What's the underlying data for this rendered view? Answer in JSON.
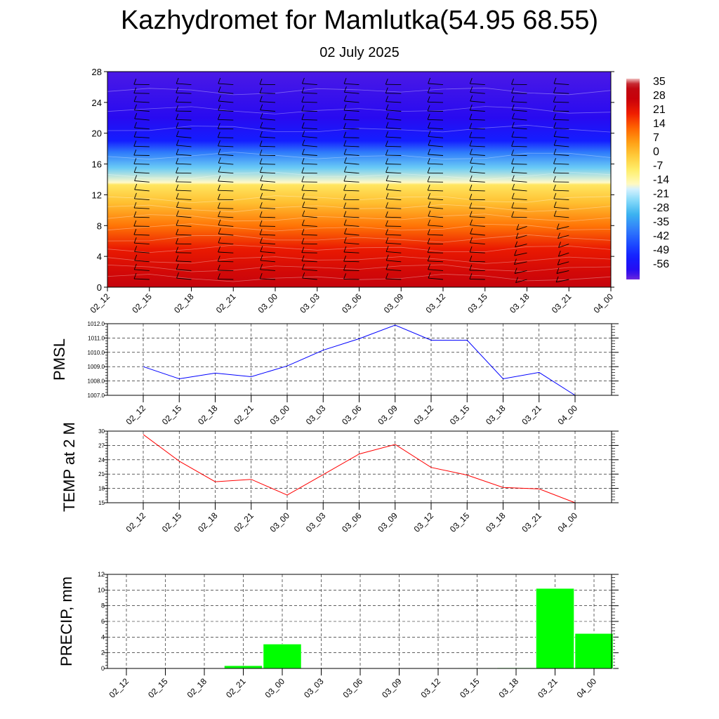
{
  "header": {
    "title": "Kazhydromet for Mamlutka(54.95 68.55)",
    "date": "02 July 2025"
  },
  "colors": {
    "pmsl_line": "#0000ff",
    "temp_line": "#ff0000",
    "precip_bar": "#00ff00",
    "grid": "#000000"
  },
  "chart_data": [
    {
      "type": "heatmap",
      "x_tick_labels": [
        "02_12",
        "02_15",
        "02_18",
        "02_21",
        "03_00",
        "03_03",
        "03_06",
        "03_09",
        "03_12",
        "03_15",
        "03_18",
        "03_21",
        "04_00"
      ],
      "y_ticks": [
        0,
        4,
        8,
        12,
        16,
        20,
        24,
        28
      ],
      "ylim": [
        0,
        28
      ],
      "colorbar_labels": [
        "35",
        "28",
        "21",
        "14",
        "7",
        "0",
        "-7",
        "-14",
        "-21",
        "-28",
        "-35",
        "-42",
        "-49",
        "-56"
      ],
      "colorbar_range": [
        -60,
        38
      ],
      "temperature_profile": [
        {
          "level": 0,
          "value": 30
        },
        {
          "level": 2,
          "value": 26
        },
        {
          "level": 5,
          "value": 22
        },
        {
          "level": 8,
          "value": 12
        },
        {
          "level": 11,
          "value": 2
        },
        {
          "level": 13.3,
          "value": -5
        },
        {
          "level": 13.6,
          "value": -14
        },
        {
          "level": 15.5,
          "value": -24
        },
        {
          "level": 17.5,
          "value": -36
        },
        {
          "level": 19,
          "value": -49
        },
        {
          "level": 22,
          "value": -56
        },
        {
          "level": 28,
          "value": -58
        }
      ],
      "wind_barbs": "wind barbs at each forecast time and level"
    },
    {
      "type": "line",
      "ylabel": "PMSL",
      "x_tick_labels": [
        "02_12",
        "02_15",
        "02_18",
        "02_21",
        "03_00",
        "03_03",
        "03_06",
        "03_09",
        "03_12",
        "03_15",
        "03_18",
        "03_21",
        "04_00"
      ],
      "y_tick_labels": [
        "1007.0",
        "1008.0",
        "1009.0",
        "1010.0",
        "1011.0",
        "1012.0"
      ],
      "ylim": [
        1007.0,
        1012.0
      ],
      "series": [
        {
          "values": [
            1009.0,
            1008.15,
            1008.55,
            1008.3,
            1009.05,
            1010.15,
            1010.95,
            1011.9,
            1010.85,
            1010.85,
            1008.15,
            1008.6,
            1007.0
          ]
        }
      ]
    },
    {
      "type": "line",
      "ylabel": "TEMP at 2 M",
      "x_tick_labels": [
        "02_12",
        "02_15",
        "02_18",
        "02_21",
        "03_00",
        "03_03",
        "03_06",
        "03_09",
        "03_12",
        "03_15",
        "03_18",
        "03_21",
        "04_00"
      ],
      "y_tick_labels": [
        "15",
        "18",
        "21",
        "24",
        "27",
        "30"
      ],
      "ylim": [
        15,
        30
      ],
      "series": [
        {
          "values": [
            29.3,
            23.7,
            19.4,
            19.9,
            16.6,
            20.9,
            25.2,
            27.2,
            22.4,
            20.8,
            18.2,
            17.9,
            15.0
          ]
        }
      ]
    },
    {
      "type": "bar",
      "ylabel": "PRECIP, mm",
      "x_tick_labels": [
        "02_12",
        "02_15",
        "02_18",
        "02_21",
        "03_00",
        "03_03",
        "03_06",
        "03_09",
        "03_12",
        "03_15",
        "03_18",
        "03_21",
        "04_00"
      ],
      "y_tick_labels": [
        "0",
        "2",
        "4",
        "6",
        "8",
        "10",
        "12"
      ],
      "ylim": [
        0,
        12
      ],
      "values": [
        0,
        0,
        0,
        0.35,
        3.1,
        0,
        0,
        0,
        0,
        0.05,
        0.08,
        10.2,
        4.45
      ]
    }
  ]
}
